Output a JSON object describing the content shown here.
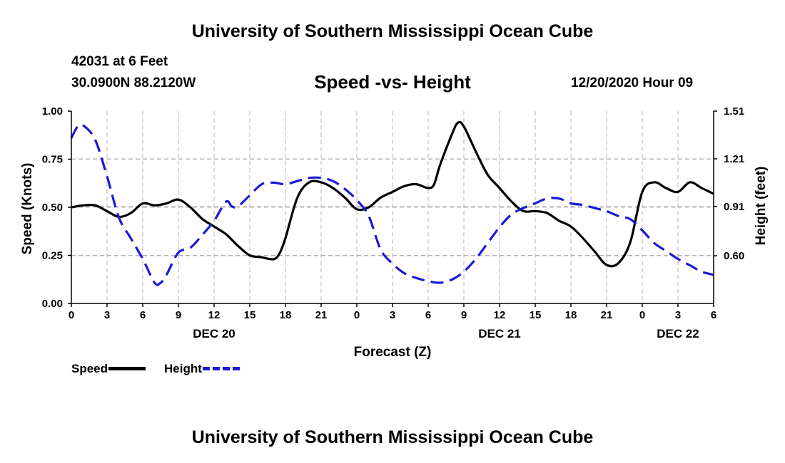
{
  "header": {
    "title": "University of Southern Mississippi Ocean Cube",
    "station": "42031 at 6 Feet",
    "coords": "30.0900N 88.2120W",
    "subtitle": "Speed -vs- Height",
    "date": "12/20/2020 Hour 09"
  },
  "footer": {
    "title": "University of Southern Mississippi Ocean Cube"
  },
  "legend": {
    "speed": "Speed",
    "height": "Height"
  },
  "colors": {
    "speed": "#000000",
    "height": "#1a1ad6",
    "grid": "#b4b4b4"
  },
  "chart_data": {
    "type": "line",
    "title": "Speed -vs- Height",
    "xlabel": "Forecast (Z)",
    "ylabel_left": "Speed (Knots)",
    "ylabel_right": "Height (feet)",
    "xlim": [
      0,
      54
    ],
    "ylim_left": [
      0,
      1
    ],
    "ylim_right": [
      0.3,
      1.51
    ],
    "grid": true,
    "x_ticks": [
      0,
      3,
      6,
      9,
      12,
      15,
      18,
      21,
      24,
      27,
      30,
      33,
      36,
      39,
      42,
      45,
      48,
      51,
      54
    ],
    "x_tick_labels": [
      "0",
      "3",
      "6",
      "9",
      "12",
      "15",
      "18",
      "21",
      "0",
      "3",
      "6",
      "9",
      "12",
      "15",
      "18",
      "21",
      "0",
      "3",
      "6"
    ],
    "date_labels": [
      {
        "x": 12,
        "label": "DEC 20"
      },
      {
        "x": 36,
        "label": "DEC 21"
      },
      {
        "x": 51,
        "label": "DEC 22"
      }
    ],
    "y_left_ticks": [
      0,
      0.25,
      0.5,
      0.75,
      1.0
    ],
    "y_left_tick_labels": [
      "0.00",
      "0.25",
      "0.50",
      "0.75",
      "1.00"
    ],
    "y_right_ticks": [
      0.6,
      0.91,
      1.21,
      1.51
    ],
    "y_right_tick_labels": [
      "0.60",
      "0.91",
      "1.21",
      "1.51"
    ],
    "series": [
      {
        "name": "Speed",
        "axis": "left",
        "style": "solid",
        "x": [
          0,
          1,
          2,
          3,
          4,
          5,
          6,
          7,
          8,
          9,
          10,
          11,
          12,
          13,
          14,
          15,
          16,
          17,
          17.5,
          18,
          19,
          20,
          21,
          22,
          23,
          24,
          25,
          26,
          27,
          28,
          29,
          30,
          30.5,
          31,
          32,
          32.5,
          33,
          34,
          35,
          36,
          37,
          38,
          39,
          40,
          41,
          42,
          43,
          44,
          45,
          46,
          47,
          48,
          49,
          50,
          51,
          52,
          53,
          54
        ],
        "values": [
          0.5,
          0.51,
          0.51,
          0.48,
          0.45,
          0.47,
          0.52,
          0.51,
          0.52,
          0.54,
          0.5,
          0.44,
          0.4,
          0.36,
          0.3,
          0.25,
          0.24,
          0.23,
          0.26,
          0.34,
          0.55,
          0.63,
          0.63,
          0.6,
          0.55,
          0.49,
          0.5,
          0.55,
          0.58,
          0.61,
          0.62,
          0.6,
          0.62,
          0.72,
          0.88,
          0.94,
          0.92,
          0.79,
          0.67,
          0.6,
          0.53,
          0.48,
          0.48,
          0.47,
          0.43,
          0.4,
          0.34,
          0.27,
          0.2,
          0.21,
          0.32,
          0.58,
          0.63,
          0.6,
          0.58,
          0.63,
          0.6,
          0.57
        ]
      },
      {
        "name": "Height",
        "axis": "right",
        "style": "dashed",
        "x": [
          0,
          0.5,
          1,
          2,
          3,
          4,
          5,
          6,
          7,
          7.5,
          8,
          9,
          10,
          11,
          12,
          13,
          13.5,
          14,
          15,
          16,
          17,
          18,
          19,
          20,
          21,
          22,
          23,
          24,
          25,
          26,
          27,
          28,
          29,
          30,
          31,
          32,
          33,
          34,
          35,
          36,
          37,
          38,
          39,
          40,
          41,
          42,
          43,
          44,
          45,
          46,
          47,
          48,
          49,
          50,
          51,
          52,
          53,
          54
        ],
        "values": [
          1.34,
          1.41,
          1.42,
          1.33,
          1.1,
          0.84,
          0.71,
          0.58,
          0.43,
          0.43,
          0.48,
          0.62,
          0.65,
          0.73,
          0.82,
          0.94,
          0.91,
          0.91,
          0.98,
          1.05,
          1.06,
          1.05,
          1.07,
          1.09,
          1.09,
          1.07,
          1.02,
          0.95,
          0.85,
          0.64,
          0.55,
          0.49,
          0.46,
          0.44,
          0.43,
          0.45,
          0.5,
          0.58,
          0.68,
          0.78,
          0.86,
          0.9,
          0.93,
          0.96,
          0.96,
          0.93,
          0.92,
          0.9,
          0.88,
          0.85,
          0.83,
          0.76,
          0.68,
          0.63,
          0.58,
          0.54,
          0.5,
          0.48
        ]
      }
    ]
  }
}
